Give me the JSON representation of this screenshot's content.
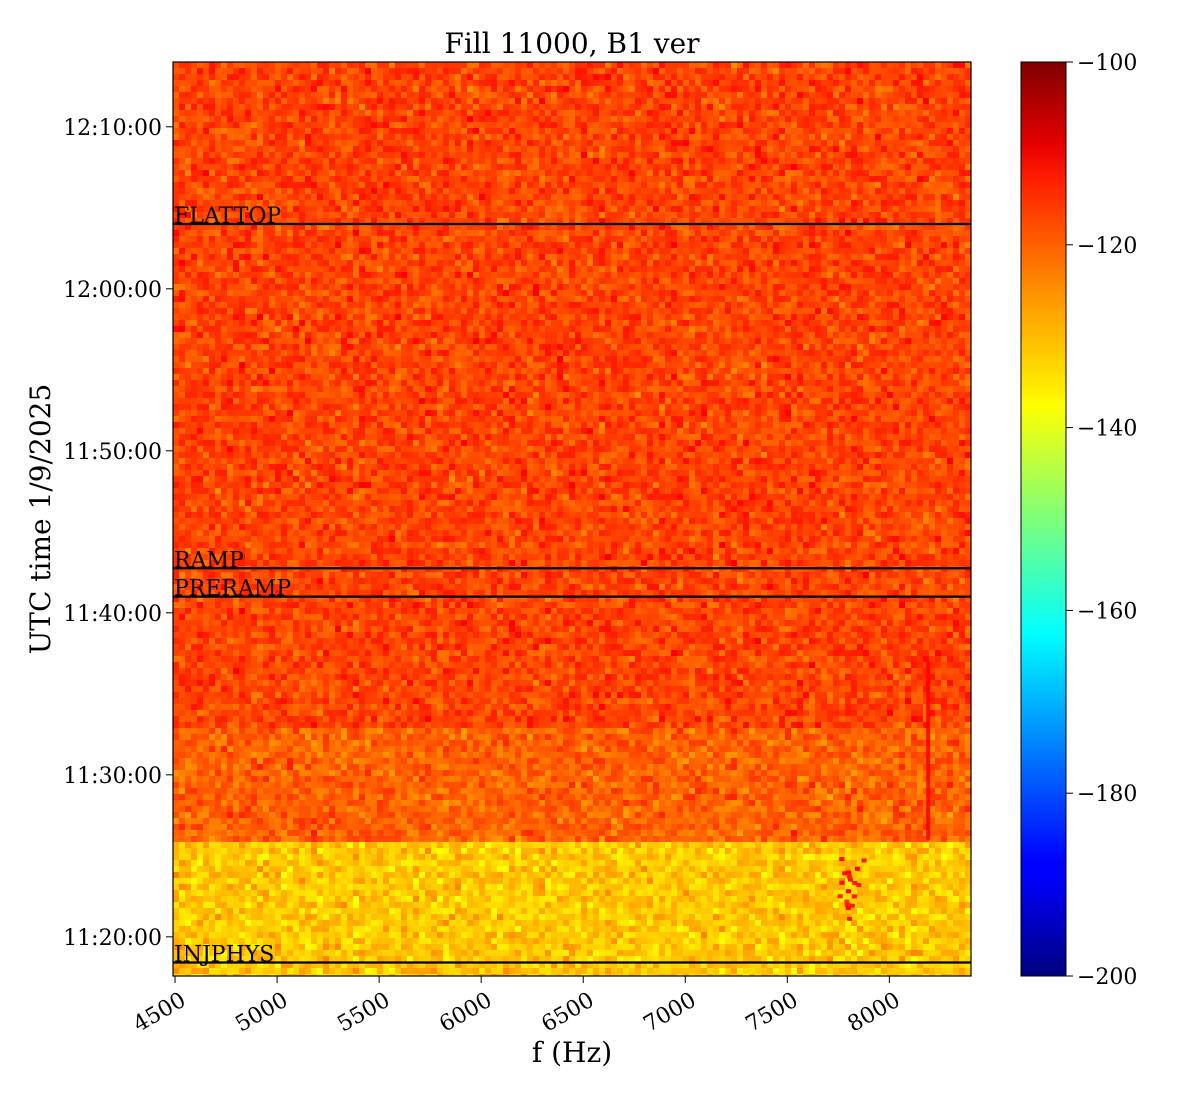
{
  "chart_data": {
    "type": "heatmap",
    "title": "Fill 11000, B1 ver",
    "xlabel": "f (Hz)",
    "ylabel": "UTC time 1/9/2025",
    "x_range_hz": [
      4490,
      8400
    ],
    "y_range": [
      "11:17:35",
      "12:14:00"
    ],
    "x_ticks": [
      4500,
      5000,
      5500,
      6000,
      6500,
      7000,
      7500,
      8000
    ],
    "y_ticks": [
      "11:20:00",
      "11:30:00",
      "11:40:00",
      "11:50:00",
      "12:00:00",
      "12:10:00"
    ],
    "colorbar": {
      "colormap": "jet",
      "range": [
        -200,
        -100
      ],
      "ticks": [
        -100,
        -120,
        -140,
        -160,
        -180,
        -200
      ]
    },
    "phases": [
      {
        "label": "INJPHYS",
        "time": "11:18:25"
      },
      {
        "label": "PRERAMP",
        "time": "11:41:00"
      },
      {
        "label": "RAMP",
        "time": "11:42:45"
      },
      {
        "label": "FLATTOP",
        "time": "12:04:00"
      }
    ],
    "regions": [
      {
        "from": "11:17:35",
        "to": "11:25:55",
        "level_db": -132
      },
      {
        "from": "11:25:55",
        "to": "11:33:00",
        "level_db": -122
      },
      {
        "from": "11:33:00",
        "to": "12:14:00",
        "level_db": -119
      }
    ],
    "features": [
      {
        "note": "vertical line",
        "freq_hz": 8190,
        "from": "11:26:00",
        "to": "11:37:00",
        "level_db": -112
      },
      {
        "note": "hot patch",
        "freq_hz": 7800,
        "from": "11:20:30",
        "to": "11:25:00",
        "level_db": -114
      }
    ]
  }
}
